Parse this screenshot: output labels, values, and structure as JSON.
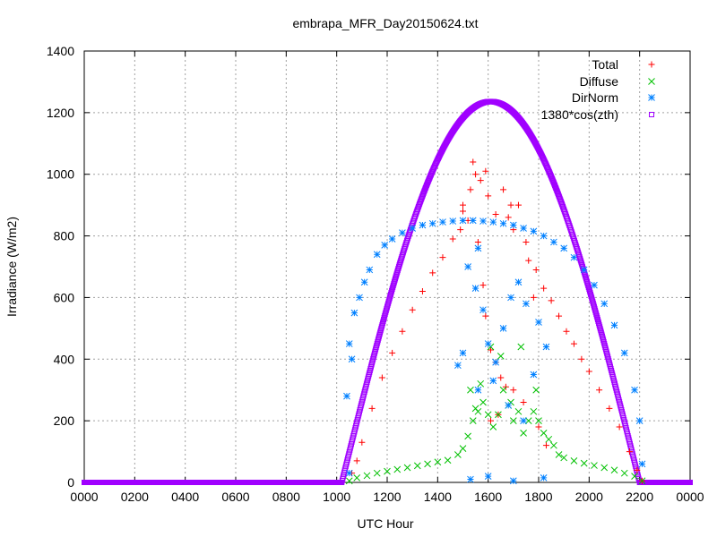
{
  "chart_data": {
    "type": "scatter",
    "title": "embrapa_MFR_Day20150624.txt",
    "xlabel": "UTC Hour",
    "ylabel": "Irradiance (W/m2)",
    "xlim": [
      0,
      24
    ],
    "ylim": [
      0,
      1400
    ],
    "x_ticks": [
      {
        "v": 0,
        "label": "0000"
      },
      {
        "v": 2,
        "label": "0200"
      },
      {
        "v": 4,
        "label": "0400"
      },
      {
        "v": 6,
        "label": "0600"
      },
      {
        "v": 8,
        "label": "0800"
      },
      {
        "v": 10,
        "label": "1000"
      },
      {
        "v": 12,
        "label": "1200"
      },
      {
        "v": 14,
        "label": "1400"
      },
      {
        "v": 16,
        "label": "1600"
      },
      {
        "v": 18,
        "label": "1800"
      },
      {
        "v": 20,
        "label": "2000"
      },
      {
        "v": 22,
        "label": "2200"
      },
      {
        "v": 24,
        "label": "0000"
      }
    ],
    "y_ticks": [
      {
        "v": 0,
        "label": "0"
      },
      {
        "v": 200,
        "label": "200"
      },
      {
        "v": 400,
        "label": "400"
      },
      {
        "v": 600,
        "label": "600"
      },
      {
        "v": 800,
        "label": "800"
      },
      {
        "v": 1000,
        "label": "1000"
      },
      {
        "v": 1200,
        "label": "1200"
      },
      {
        "v": 1400,
        "label": "1400"
      }
    ],
    "grid": true,
    "legend_position": "top-right",
    "series": [
      {
        "name": "Total",
        "marker": "plus",
        "color": "#ff0000",
        "points": [
          [
            10.6,
            30
          ],
          [
            10.8,
            70
          ],
          [
            11.0,
            130
          ],
          [
            11.4,
            240
          ],
          [
            11.8,
            340
          ],
          [
            12.2,
            420
          ],
          [
            12.6,
            490
          ],
          [
            13.0,
            560
          ],
          [
            13.4,
            620
          ],
          [
            13.8,
            680
          ],
          [
            14.2,
            730
          ],
          [
            14.6,
            790
          ],
          [
            15.0,
            900
          ],
          [
            15.3,
            950
          ],
          [
            15.5,
            1000
          ],
          [
            15.7,
            980
          ],
          [
            16.0,
            930
          ],
          [
            16.3,
            870
          ],
          [
            16.6,
            950
          ],
          [
            16.9,
            900
          ],
          [
            17.2,
            900
          ],
          [
            17.5,
            780
          ],
          [
            17.9,
            690
          ],
          [
            18.2,
            630
          ],
          [
            18.5,
            590
          ],
          [
            18.8,
            540
          ],
          [
            19.1,
            490
          ],
          [
            19.4,
            450
          ],
          [
            19.7,
            400
          ],
          [
            20.0,
            360
          ],
          [
            20.4,
            300
          ],
          [
            20.8,
            240
          ],
          [
            21.2,
            180
          ],
          [
            21.6,
            100
          ],
          [
            21.9,
            40
          ],
          [
            22.1,
            5
          ],
          [
            15.2,
            850
          ],
          [
            15.6,
            780
          ],
          [
            15.8,
            640
          ],
          [
            15.9,
            540
          ],
          [
            16.1,
            430
          ],
          [
            16.3,
            390
          ],
          [
            16.5,
            340
          ],
          [
            16.7,
            310
          ],
          [
            17.0,
            300
          ],
          [
            17.4,
            260
          ],
          [
            18.0,
            180
          ],
          [
            18.3,
            120
          ],
          [
            16.1,
            200
          ],
          [
            16.4,
            220
          ],
          [
            15.4,
            1040
          ],
          [
            15.9,
            1010
          ],
          [
            16.8,
            860
          ],
          [
            17.0,
            820
          ],
          [
            17.6,
            720
          ],
          [
            17.8,
            600
          ],
          [
            15.0,
            880
          ],
          [
            14.9,
            820
          ]
        ]
      },
      {
        "name": "Diffuse",
        "marker": "x",
        "color": "#00c000",
        "points": [
          [
            10.5,
            5
          ],
          [
            10.8,
            15
          ],
          [
            11.2,
            22
          ],
          [
            11.6,
            30
          ],
          [
            12.0,
            36
          ],
          [
            12.4,
            42
          ],
          [
            12.8,
            48
          ],
          [
            13.2,
            54
          ],
          [
            13.6,
            60
          ],
          [
            14.0,
            66
          ],
          [
            14.4,
            72
          ],
          [
            14.8,
            90
          ],
          [
            15.0,
            110
          ],
          [
            15.2,
            150
          ],
          [
            15.4,
            200
          ],
          [
            15.6,
            230
          ],
          [
            15.8,
            260
          ],
          [
            16.0,
            220
          ],
          [
            16.2,
            180
          ],
          [
            16.4,
            220
          ],
          [
            16.6,
            300
          ],
          [
            16.8,
            250
          ],
          [
            17.0,
            200
          ],
          [
            17.2,
            230
          ],
          [
            17.4,
            160
          ],
          [
            17.6,
            200
          ],
          [
            17.8,
            230
          ],
          [
            18.0,
            200
          ],
          [
            18.2,
            160
          ],
          [
            18.4,
            140
          ],
          [
            18.6,
            120
          ],
          [
            18.8,
            90
          ],
          [
            19.0,
            80
          ],
          [
            19.4,
            70
          ],
          [
            19.8,
            62
          ],
          [
            20.2,
            55
          ],
          [
            20.6,
            48
          ],
          [
            21.0,
            40
          ],
          [
            21.4,
            30
          ],
          [
            21.8,
            20
          ],
          [
            22.1,
            5
          ],
          [
            15.3,
            300
          ],
          [
            15.7,
            320
          ],
          [
            16.1,
            440
          ],
          [
            16.5,
            410
          ],
          [
            17.3,
            440
          ],
          [
            17.9,
            300
          ],
          [
            15.5,
            240
          ],
          [
            16.9,
            260
          ]
        ]
      },
      {
        "name": "DirNorm",
        "marker": "star",
        "color": "#0080ff",
        "points": [
          [
            10.7,
            550
          ],
          [
            10.9,
            600
          ],
          [
            11.1,
            650
          ],
          [
            11.3,
            690
          ],
          [
            11.6,
            740
          ],
          [
            11.9,
            770
          ],
          [
            12.2,
            790
          ],
          [
            12.6,
            810
          ],
          [
            13.0,
            825
          ],
          [
            13.4,
            835
          ],
          [
            13.8,
            840
          ],
          [
            14.2,
            845
          ],
          [
            14.6,
            848
          ],
          [
            15.0,
            850
          ],
          [
            15.4,
            850
          ],
          [
            15.8,
            848
          ],
          [
            16.2,
            845
          ],
          [
            16.6,
            840
          ],
          [
            17.0,
            835
          ],
          [
            17.4,
            825
          ],
          [
            17.8,
            815
          ],
          [
            18.2,
            800
          ],
          [
            18.6,
            780
          ],
          [
            19.0,
            760
          ],
          [
            19.4,
            730
          ],
          [
            19.8,
            690
          ],
          [
            20.2,
            640
          ],
          [
            20.6,
            580
          ],
          [
            21.0,
            510
          ],
          [
            21.4,
            420
          ],
          [
            21.8,
            300
          ],
          [
            22.0,
            200
          ],
          [
            22.1,
            60
          ],
          [
            10.5,
            450
          ],
          [
            10.4,
            280
          ],
          [
            10.6,
            400
          ],
          [
            10.5,
            30
          ],
          [
            15.2,
            700
          ],
          [
            15.5,
            630
          ],
          [
            15.8,
            560
          ],
          [
            16.0,
            450
          ],
          [
            16.3,
            390
          ],
          [
            16.6,
            500
          ],
          [
            16.9,
            600
          ],
          [
            17.2,
            650
          ],
          [
            17.5,
            580
          ],
          [
            18.0,
            520
          ],
          [
            18.3,
            440
          ],
          [
            14.8,
            380
          ],
          [
            15.0,
            420
          ],
          [
            15.6,
            300
          ],
          [
            16.2,
            330
          ],
          [
            16.8,
            250
          ],
          [
            17.4,
            200
          ],
          [
            17.8,
            350
          ],
          [
            15.3,
            10
          ],
          [
            16.0,
            20
          ],
          [
            17.0,
            5
          ],
          [
            18.2,
            15
          ],
          [
            15.6,
            760
          ]
        ]
      },
      {
        "name": "1380*cos(zth)",
        "marker": "square",
        "color": "#a000ff",
        "curve": {
          "sunrise": 10.2,
          "sunset": 22.0,
          "peak": 1236
        },
        "night_value": 0
      }
    ]
  }
}
